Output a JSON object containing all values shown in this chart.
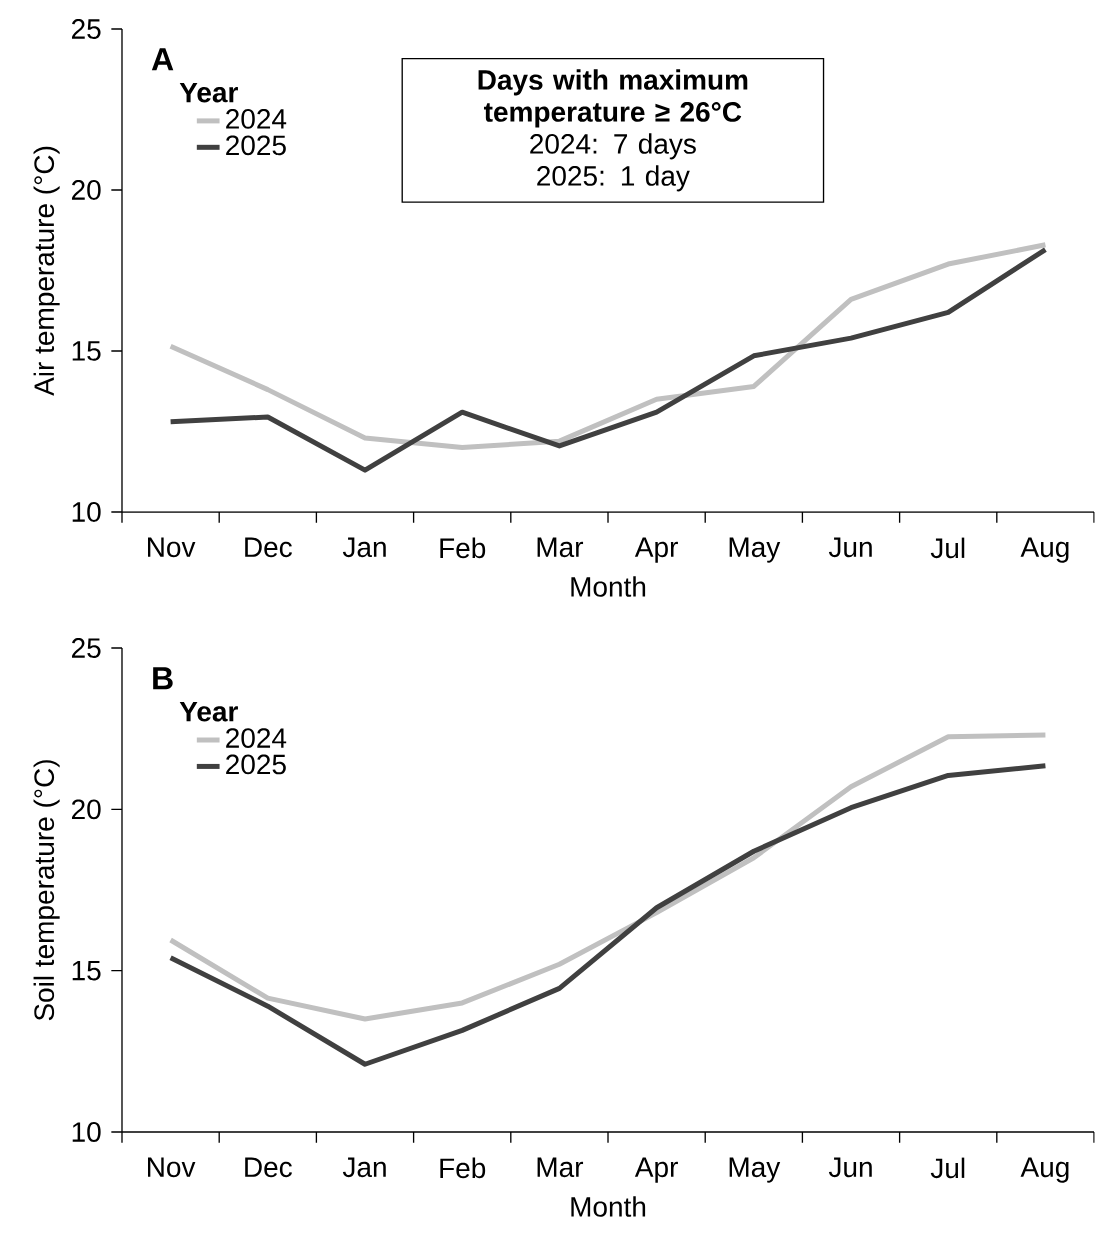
{
  "chart_data": [
    {
      "type": "line",
      "title": "A",
      "xlabel": "Month",
      "ylabel": "Air temperature (°C)",
      "legend_title": "Year",
      "legend": "top left",
      "grid": false,
      "line_style": "solid",
      "categories": [
        "Nov",
        "Dec",
        "Jan",
        "Feb",
        "Mar",
        "Apr",
        "May",
        "Jun",
        "Jul",
        "Aug"
      ],
      "series": [
        {
          "name": "2024",
          "color": "#c0c0c0",
          "values": [
            15.15,
            13.8,
            12.3,
            12.0,
            12.2,
            13.5,
            13.9,
            16.6,
            17.7,
            18.3
          ]
        },
        {
          "name": "2025",
          "color": "#404040",
          "values": [
            12.8,
            12.95,
            11.3,
            13.1,
            12.05,
            13.1,
            14.85,
            15.4,
            16.2,
            18.15
          ]
        }
      ],
      "ylim": [
        10,
        25
      ],
      "yticks": [
        10,
        15,
        20,
        25
      ],
      "annotations": [
        "Days with maximum temperature ≥ 26°C",
        "2024: 7 days",
        "2025: 1 day"
      ]
    },
    {
      "type": "line",
      "title": "B",
      "xlabel": "Month",
      "ylabel": "Soil temperature (°C)",
      "legend_title": "Year",
      "legend": "top left",
      "grid": false,
      "line_style": "solid",
      "categories": [
        "Nov",
        "Dec",
        "Jan",
        "Feb",
        "Mar",
        "Apr",
        "May",
        "Jun",
        "Jul",
        "Aug"
      ],
      "series": [
        {
          "name": "2024",
          "color": "#c0c0c0",
          "values": [
            15.95,
            14.15,
            13.5,
            14.0,
            15.2,
            16.8,
            18.5,
            20.7,
            22.25,
            22.3
          ]
        },
        {
          "name": "2025",
          "color": "#404040",
          "values": [
            15.4,
            13.9,
            12.1,
            13.15,
            14.45,
            16.95,
            18.7,
            20.05,
            21.05,
            21.35
          ]
        }
      ],
      "ylim": [
        10,
        25
      ],
      "yticks": [
        10,
        15,
        20,
        25
      ]
    }
  ]
}
